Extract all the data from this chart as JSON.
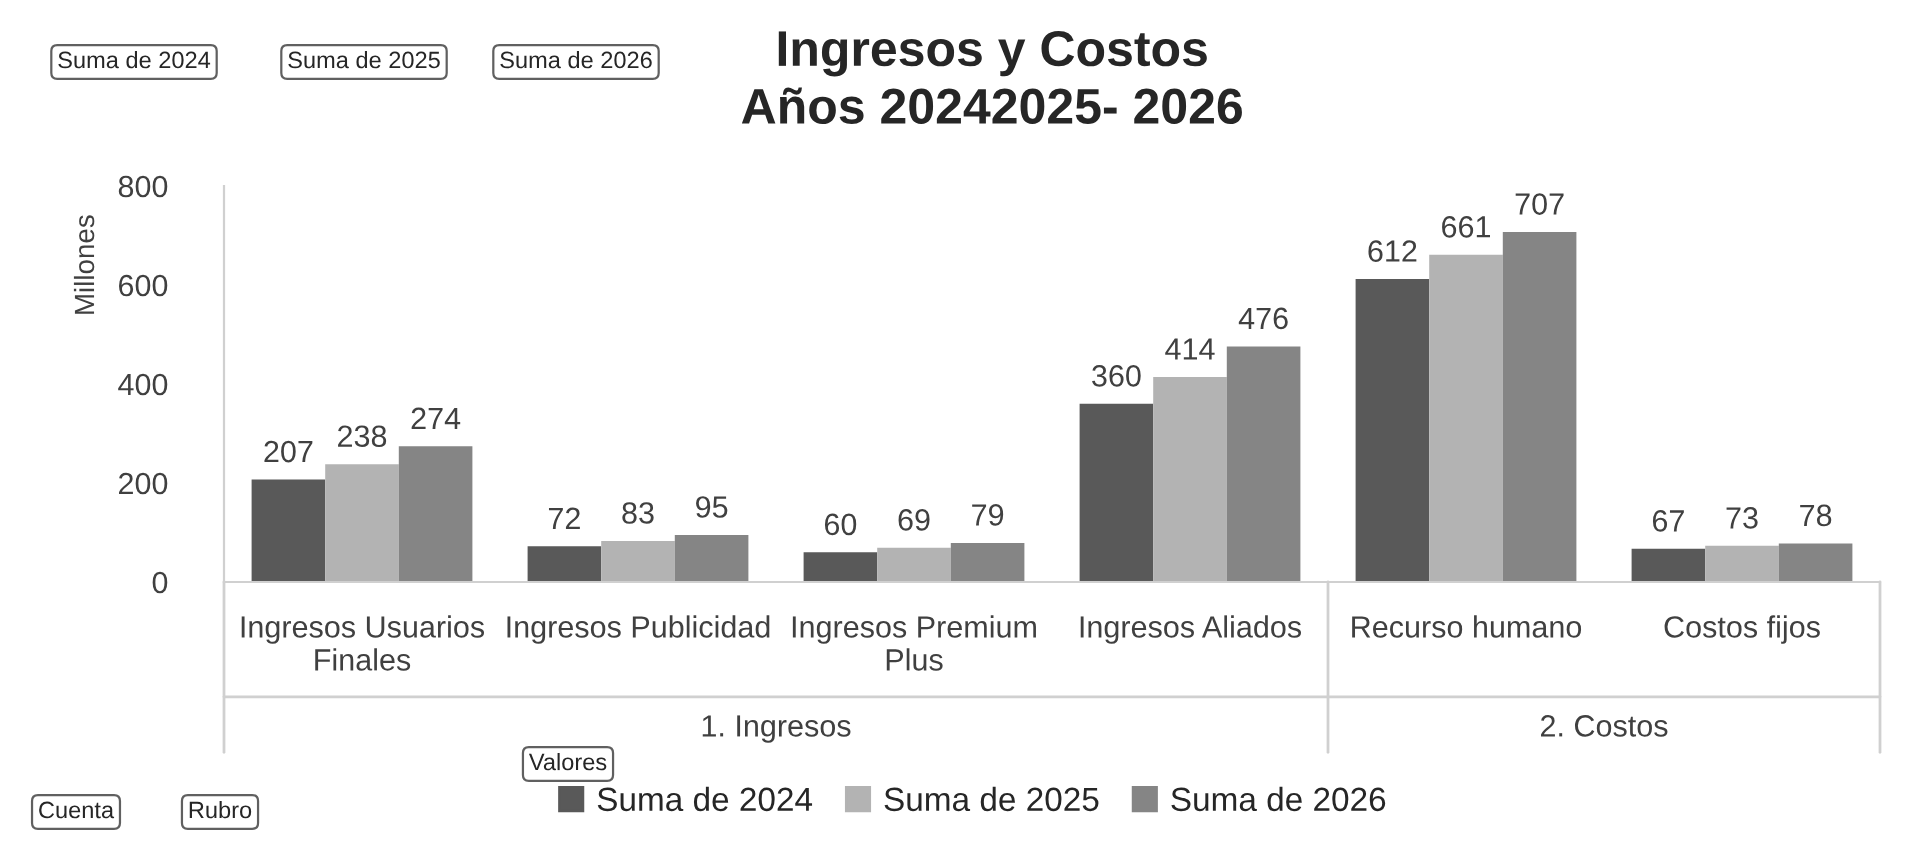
{
  "chart_data": {
    "type": "bar",
    "title": "Ingresos y Costos\nAños 20242025- 2026",
    "ylabel": "Millones",
    "categories": [
      "Ingresos Usuarios\nFinales",
      "Ingresos Publicidad",
      "Ingresos Premium\nPlus",
      "Ingresos Aliados",
      "Recurso humano",
      "Costos fijos"
    ],
    "series": [
      {
        "name": "Suma de 2024",
        "color": "#595959",
        "values": [
          207,
          72,
          60,
          360,
          612,
          67
        ]
      },
      {
        "name": "Suma de 2025",
        "color": "#b3b3b3",
        "values": [
          238,
          83,
          69,
          414,
          661,
          73
        ]
      },
      {
        "name": "Suma de 2026",
        "color": "#858585",
        "values": [
          274,
          95,
          79,
          476,
          707,
          78
        ]
      }
    ],
    "ylim": [
      0,
      800
    ],
    "yticks": [
      0,
      200,
      400,
      600,
      800
    ],
    "grid": false,
    "legend": "bottom",
    "data_labels": true,
    "annotations": [
      "1. Ingresos",
      "2. Costos",
      "Suma de 2024",
      "Suma de 2025",
      "Suma de 2026",
      "Valores",
      "Cuenta",
      "Rubro"
    ]
  }
}
